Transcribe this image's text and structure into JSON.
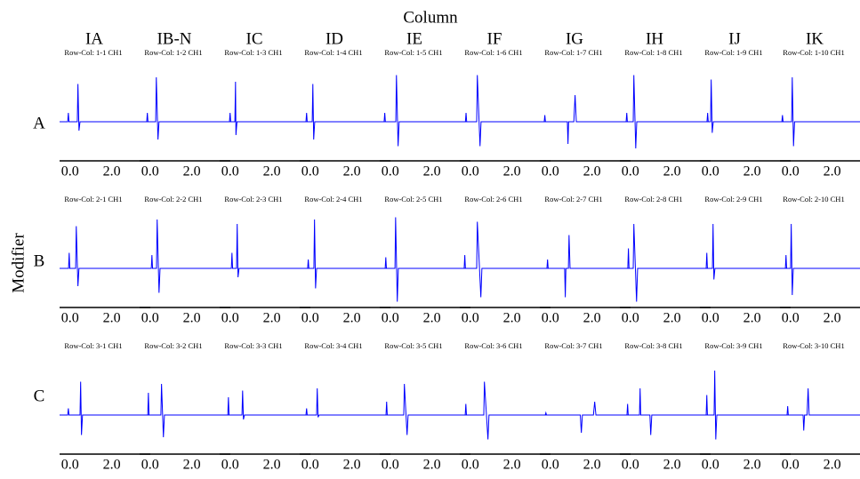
{
  "title": "Column",
  "ylabel": "Modifier",
  "columns": [
    "IA",
    "IB-N",
    "IC",
    "ID",
    "IE",
    "IF",
    "IG",
    "IH",
    "IJ",
    "IK"
  ],
  "rows": [
    "A",
    "B",
    "C"
  ],
  "chart_data": [
    {
      "type": "line",
      "title": "Row-Col: 1-1 CH1",
      "color": "#0000ff",
      "xlim": [
        -0.5,
        3.85
      ],
      "ylim": [
        -0.8,
        1.3
      ],
      "xticks": [
        {
          "value": 0,
          "label": "0.0"
        },
        {
          "value": 2,
          "label": "2.0"
        }
      ],
      "x": [
        -0.5,
        -0.11,
        -0.08,
        -0.05,
        0.35,
        0.38,
        0.43,
        0.48,
        3.85
      ],
      "values": [
        0,
        0,
        0.2,
        0,
        0,
        0.85,
        -0.2,
        0,
        0
      ]
    },
    {
      "type": "line",
      "title": "Row-Col: 1-2 CH1",
      "color": "#0000ff",
      "xlim": [
        -0.5,
        3.85
      ],
      "ylim": [
        -0.8,
        1.3
      ],
      "xticks": [
        {
          "value": 0,
          "label": "0.0"
        },
        {
          "value": 2,
          "label": "2.0"
        }
      ],
      "x": [
        -0.5,
        -0.16,
        -0.13,
        -0.1,
        0.27,
        0.3,
        0.38,
        0.43,
        3.85
      ],
      "values": [
        0,
        0,
        0.2,
        0,
        0,
        1.0,
        -0.4,
        0,
        0
      ]
    },
    {
      "type": "line",
      "title": "Row-Col: 1-3 CH1",
      "color": "#0000ff",
      "xlim": [
        -0.5,
        3.85
      ],
      "ylim": [
        -0.8,
        1.3
      ],
      "xticks": [
        {
          "value": 0,
          "label": "0.0"
        },
        {
          "value": 2,
          "label": "2.0"
        }
      ],
      "x": [
        -0.5,
        -0.03,
        0,
        0.03,
        0.23,
        0.26,
        0.28,
        0.33,
        3.85
      ],
      "values": [
        0,
        0,
        0.2,
        0,
        0,
        0.9,
        -0.3,
        0,
        0
      ]
    },
    {
      "type": "line",
      "title": "Row-Col: 1-4 CH1",
      "color": "#0000ff",
      "xlim": [
        -0.5,
        3.85
      ],
      "ylim": [
        -0.8,
        1.3
      ],
      "xticks": [
        {
          "value": 0,
          "label": "0.0"
        },
        {
          "value": 2,
          "label": "2.0"
        }
      ],
      "x": [
        -0.5,
        -0.2,
        -0.17,
        -0.14,
        0.1,
        0.13,
        0.17,
        0.22,
        3.85
      ],
      "values": [
        0,
        0,
        0.2,
        0,
        0,
        0.85,
        -0.4,
        0,
        0
      ]
    },
    {
      "type": "line",
      "title": "Row-Col: 1-5 CH1",
      "color": "#0000ff",
      "xlim": [
        -0.5,
        3.85
      ],
      "ylim": [
        -0.8,
        1.3
      ],
      "xticks": [
        {
          "value": 0,
          "label": "0.0"
        },
        {
          "value": 2,
          "label": "2.0"
        }
      ],
      "x": [
        -0.5,
        -0.29,
        -0.26,
        -0.23,
        0.27,
        0.3,
        0.38,
        0.43,
        3.85
      ],
      "values": [
        0,
        0,
        0.2,
        0,
        0,
        1.05,
        -0.55,
        0,
        0
      ]
    },
    {
      "type": "line",
      "title": "Row-Col: 1-6 CH1",
      "color": "#0000ff",
      "xlim": [
        -0.5,
        3.85
      ],
      "ylim": [
        -0.8,
        1.3
      ],
      "xticks": [
        {
          "value": 0,
          "label": "0.0"
        },
        {
          "value": 2,
          "label": "2.0"
        }
      ],
      "x": [
        -0.5,
        -0.23,
        -0.2,
        -0.17,
        0.31,
        0.34,
        0.47,
        0.52,
        3.85
      ],
      "values": [
        0,
        0,
        0.2,
        0,
        0,
        1.05,
        -0.55,
        0,
        0
      ]
    },
    {
      "type": "line",
      "title": "Row-Col: 1-7 CH1",
      "color": "#0000ff",
      "xlim": [
        -0.5,
        3.85
      ],
      "ylim": [
        -0.8,
        1.3
      ],
      "xticks": [
        {
          "value": 0,
          "label": "0.0"
        },
        {
          "value": 2,
          "label": "2.0"
        }
      ],
      "x": [
        -0.5,
        -0.29,
        -0.26,
        -0.23,
        0.82,
        0.85,
        0.88,
        1.13,
        1.19,
        1.25,
        3.85
      ],
      "values": [
        0,
        0,
        0.15,
        0,
        0,
        -0.5,
        0,
        0,
        0.6,
        0,
        0
      ]
    },
    {
      "type": "line",
      "title": "Row-Col: 1-8 CH1",
      "color": "#0000ff",
      "xlim": [
        -0.5,
        3.85
      ],
      "ylim": [
        -0.8,
        1.3
      ],
      "xticks": [
        {
          "value": 0,
          "label": "0.0"
        },
        {
          "value": 2,
          "label": "2.0"
        }
      ],
      "x": [
        -0.5,
        -0.2,
        -0.17,
        -0.14,
        0.14,
        0.17,
        0.26,
        0.31,
        3.85
      ],
      "values": [
        0,
        0,
        0.2,
        0,
        0,
        1.05,
        -0.6,
        0,
        0
      ]
    },
    {
      "type": "line",
      "title": "Row-Col: 1-9 CH1",
      "color": "#0000ff",
      "xlim": [
        -0.5,
        3.85
      ],
      "ylim": [
        -0.8,
        1.3
      ],
      "xticks": [
        {
          "value": 0,
          "label": "0.0"
        },
        {
          "value": 2,
          "label": "2.0"
        }
      ],
      "x": [
        -0.5,
        -0.16,
        -0.13,
        -0.1,
        0.01,
        0.04,
        0.09,
        0.14,
        3.85
      ],
      "values": [
        0,
        0,
        0.2,
        0,
        0,
        0.95,
        -0.25,
        0,
        0
      ]
    },
    {
      "type": "line",
      "title": "Row-Col: 1-10 CH1",
      "color": "#0000ff",
      "xlim": [
        -0.5,
        3.85
      ],
      "ylim": [
        -0.8,
        1.3
      ],
      "xticks": [
        {
          "value": 0,
          "label": "0.0"
        },
        {
          "value": 2,
          "label": "2.0"
        }
      ],
      "x": [
        -0.5,
        -0.41,
        -0.38,
        -0.35,
        0.06,
        0.09,
        0.15,
        0.2,
        3.85
      ],
      "values": [
        0,
        0,
        0.15,
        0,
        0,
        1.0,
        -0.55,
        0,
        0
      ]
    },
    {
      "type": "line",
      "title": "Row-Col: 2-1 CH1",
      "color": "#0000ff",
      "xlim": [
        -0.5,
        3.85
      ],
      "ylim": [
        -0.8,
        1.3
      ],
      "xticks": [
        {
          "value": 0,
          "label": "0.0"
        },
        {
          "value": 2,
          "label": "2.0"
        }
      ],
      "x": [
        -0.5,
        -0.07,
        -0.04,
        -0.01,
        0.27,
        0.3,
        0.38,
        0.43,
        3.85
      ],
      "values": [
        0,
        0,
        0.35,
        0,
        0,
        0.95,
        -0.4,
        0,
        0
      ]
    },
    {
      "type": "line",
      "title": "Row-Col: 2-2 CH1",
      "color": "#0000ff",
      "xlim": [
        -0.5,
        3.85
      ],
      "ylim": [
        -0.8,
        1.3
      ],
      "xticks": [
        {
          "value": 0,
          "label": "0.0"
        },
        {
          "value": 2,
          "label": "2.0"
        }
      ],
      "x": [
        -0.5,
        0.06,
        0.09,
        0.12,
        0.31,
        0.34,
        0.43,
        0.48,
        3.85
      ],
      "values": [
        0,
        0,
        0.3,
        0,
        0,
        1.1,
        -0.55,
        0,
        0
      ]
    },
    {
      "type": "line",
      "title": "Row-Col: 2-3 CH1",
      "color": "#0000ff",
      "xlim": [
        -0.5,
        3.85
      ],
      "ylim": [
        -0.8,
        1.3
      ],
      "xticks": [
        {
          "value": 0,
          "label": "0.0"
        },
        {
          "value": 2,
          "label": "2.0"
        }
      ],
      "x": [
        -0.5,
        0.06,
        0.09,
        0.12,
        0.31,
        0.34,
        0.38,
        0.43,
        3.85
      ],
      "values": [
        0,
        0,
        0.35,
        0,
        0,
        1.0,
        -0.2,
        0,
        0
      ]
    },
    {
      "type": "line",
      "title": "Row-Col: 2-4 CH1",
      "color": "#0000ff",
      "xlim": [
        -0.5,
        3.85
      ],
      "ylim": [
        -0.8,
        1.3
      ],
      "xticks": [
        {
          "value": 0,
          "label": "0.0"
        },
        {
          "value": 2,
          "label": "2.0"
        }
      ],
      "x": [
        -0.5,
        -0.12,
        -0.09,
        -0.06,
        0.18,
        0.21,
        0.26,
        0.31,
        3.85
      ],
      "values": [
        0,
        0,
        0.2,
        0,
        0,
        1.1,
        -0.45,
        0,
        0
      ]
    },
    {
      "type": "line",
      "title": "Row-Col: 2-5 CH1",
      "color": "#0000ff",
      "xlim": [
        -0.5,
        3.85
      ],
      "ylim": [
        -0.8,
        1.3
      ],
      "xticks": [
        {
          "value": 0,
          "label": "0.0"
        },
        {
          "value": 2,
          "label": "2.0"
        }
      ],
      "x": [
        -0.5,
        -0.24,
        -0.21,
        -0.18,
        0.23,
        0.26,
        0.34,
        0.39,
        3.85
      ],
      "values": [
        0,
        0,
        0.25,
        0,
        0,
        1.15,
        -0.75,
        0,
        0
      ]
    },
    {
      "type": "line",
      "title": "Row-Col: 2-6 CH1",
      "color": "#0000ff",
      "xlim": [
        -0.5,
        3.85
      ],
      "ylim": [
        -0.8,
        1.3
      ],
      "xticks": [
        {
          "value": 0,
          "label": "0.0"
        },
        {
          "value": 2,
          "label": "2.0"
        }
      ],
      "x": [
        -0.5,
        -0.29,
        -0.26,
        -0.23,
        0.31,
        0.34,
        0.51,
        0.56,
        3.85
      ],
      "values": [
        0,
        0,
        0.3,
        0,
        0,
        1.05,
        -0.65,
        0,
        0
      ]
    },
    {
      "type": "line",
      "title": "Row-Col: 2-7 CH1",
      "color": "#0000ff",
      "xlim": [
        -0.5,
        3.85
      ],
      "ylim": [
        -0.8,
        1.3
      ],
      "xticks": [
        {
          "value": 0,
          "label": "0.0"
        },
        {
          "value": 2,
          "label": "2.0"
        }
      ],
      "x": [
        -0.5,
        -0.16,
        -0.13,
        -0.1,
        0.69,
        0.72,
        0.75,
        0.87,
        0.9,
        0.95,
        3.85
      ],
      "values": [
        0,
        0,
        0.2,
        0,
        0,
        -0.65,
        0,
        0,
        0.75,
        0,
        0
      ]
    },
    {
      "type": "line",
      "title": "Row-Col: 2-8 CH1",
      "color": "#0000ff",
      "xlim": [
        -0.5,
        3.85
      ],
      "ylim": [
        -0.8,
        1.3
      ],
      "xticks": [
        {
          "value": 0,
          "label": "0.0"
        },
        {
          "value": 2,
          "label": "2.0"
        }
      ],
      "x": [
        -0.5,
        -0.12,
        -0.09,
        -0.06,
        0.14,
        0.17,
        0.3,
        0.35,
        3.85
      ],
      "values": [
        0,
        0,
        0.45,
        0,
        0,
        1.0,
        -0.75,
        0,
        0
      ]
    },
    {
      "type": "line",
      "title": "Row-Col: 2-9 CH1",
      "color": "#0000ff",
      "xlim": [
        -0.5,
        3.85
      ],
      "ylim": [
        -0.8,
        1.3
      ],
      "xticks": [
        {
          "value": 0,
          "label": "0.0"
        },
        {
          "value": 2,
          "label": "2.0"
        }
      ],
      "x": [
        -0.5,
        -0.2,
        -0.17,
        -0.14,
        0.1,
        0.13,
        0.17,
        0.22,
        3.85
      ],
      "values": [
        0,
        0,
        0.35,
        0,
        0,
        1.0,
        -0.25,
        0,
        0
      ]
    },
    {
      "type": "line",
      "title": "Row-Col: 2-10 CH1",
      "color": "#0000ff",
      "xlim": [
        -0.5,
        3.85
      ],
      "ylim": [
        -0.8,
        1.3
      ],
      "xticks": [
        {
          "value": 0,
          "label": "0.0"
        },
        {
          "value": 2,
          "label": "2.0"
        }
      ],
      "x": [
        -0.5,
        -0.24,
        -0.21,
        -0.18,
        0.01,
        0.04,
        0.09,
        0.14,
        3.85
      ],
      "values": [
        0,
        0,
        0.3,
        0,
        0,
        1.0,
        -0.6,
        0,
        0
      ]
    },
    {
      "type": "line",
      "title": "Row-Col: 3-1 CH1",
      "color": "#0000ff",
      "xlim": [
        -0.5,
        3.85
      ],
      "ylim": [
        -0.8,
        1.3
      ],
      "xticks": [
        {
          "value": 0,
          "label": "0.0"
        },
        {
          "value": 2,
          "label": "2.0"
        }
      ],
      "x": [
        -0.5,
        -0.11,
        -0.08,
        -0.05,
        0.48,
        0.51,
        0.55,
        0.6,
        3.85
      ],
      "values": [
        0,
        0,
        0.15,
        0,
        0,
        0.75,
        -0.45,
        0,
        0
      ]
    },
    {
      "type": "line",
      "title": "Row-Col: 3-2 CH1",
      "color": "#0000ff",
      "xlim": [
        -0.5,
        3.85
      ],
      "ylim": [
        -0.8,
        1.3
      ],
      "xticks": [
        {
          "value": 0,
          "label": "0.0"
        },
        {
          "value": 2,
          "label": "2.0"
        }
      ],
      "x": [
        -0.5,
        -0.11,
        -0.08,
        -0.05,
        0.52,
        0.55,
        0.64,
        0.69,
        3.85
      ],
      "values": [
        0,
        0,
        0.5,
        0,
        0,
        0.7,
        -0.5,
        0,
        0
      ]
    },
    {
      "type": "line",
      "title": "Row-Col: 3-3 CH1",
      "color": "#0000ff",
      "xlim": [
        -0.5,
        3.85
      ],
      "ylim": [
        -0.8,
        1.3
      ],
      "xticks": [
        {
          "value": 0,
          "label": "0.0"
        },
        {
          "value": 2,
          "label": "2.0"
        }
      ],
      "x": [
        -0.5,
        -0.11,
        -0.08,
        -0.05,
        0.57,
        0.6,
        0.64,
        0.69,
        3.85
      ],
      "values": [
        0,
        0,
        0.4,
        0,
        0,
        0.55,
        -0.1,
        0,
        0
      ]
    },
    {
      "type": "line",
      "title": "Row-Col: 3-4 CH1",
      "color": "#0000ff",
      "xlim": [
        -0.5,
        3.85
      ],
      "ylim": [
        -0.8,
        1.3
      ],
      "xticks": [
        {
          "value": 0,
          "label": "0.0"
        },
        {
          "value": 2,
          "label": "2.0"
        }
      ],
      "x": [
        -0.5,
        -0.2,
        -0.17,
        -0.14,
        0.31,
        0.34,
        0.38,
        0.43,
        3.85
      ],
      "values": [
        0,
        0,
        0.15,
        0,
        0,
        0.6,
        -0.05,
        0,
        0
      ]
    },
    {
      "type": "line",
      "title": "Row-Col: 3-5 CH1",
      "color": "#0000ff",
      "xlim": [
        -0.5,
        3.85
      ],
      "ylim": [
        -0.8,
        1.3
      ],
      "xticks": [
        {
          "value": 0,
          "label": "0.0"
        },
        {
          "value": 2,
          "label": "2.0"
        }
      ],
      "x": [
        -0.5,
        -0.2,
        -0.17,
        -0.14,
        0.65,
        0.68,
        0.81,
        0.86,
        3.85
      ],
      "values": [
        0,
        0,
        0.3,
        0,
        0,
        0.7,
        -0.45,
        0,
        0
      ]
    },
    {
      "type": "line",
      "title": "Row-Col: 3-6 CH1",
      "color": "#0000ff",
      "xlim": [
        -0.5,
        3.85
      ],
      "ylim": [
        -0.8,
        1.3
      ],
      "xticks": [
        {
          "value": 0,
          "label": "0.0"
        },
        {
          "value": 2,
          "label": "2.0"
        }
      ],
      "x": [
        -0.5,
        -0.24,
        -0.21,
        -0.18,
        0.65,
        0.68,
        0.85,
        0.9,
        3.85
      ],
      "values": [
        0,
        0,
        0.25,
        0,
        0,
        0.75,
        -0.55,
        0,
        0
      ]
    },
    {
      "type": "line",
      "title": "Row-Col: 3-7 CH1",
      "color": "#0000ff",
      "xlim": [
        -0.5,
        3.85
      ],
      "ylim": [
        -0.8,
        1.3
      ],
      "xticks": [
        {
          "value": 0,
          "label": "0.0"
        },
        {
          "value": 2,
          "label": "2.0"
        }
      ],
      "x": [
        -0.5,
        -0.24,
        -0.21,
        -0.18,
        1.44,
        1.49,
        1.54,
        2.07,
        2.13,
        2.19,
        3.85
      ],
      "values": [
        0,
        0,
        0.05,
        0,
        0,
        -0.4,
        0,
        0,
        0.3,
        0,
        0
      ]
    },
    {
      "type": "line",
      "title": "Row-Col: 3-8 CH1",
      "color": "#0000ff",
      "xlim": [
        -0.5,
        3.85
      ],
      "ylim": [
        -0.8,
        1.3
      ],
      "xticks": [
        {
          "value": 0,
          "label": "0.0"
        },
        {
          "value": 2,
          "label": "2.0"
        }
      ],
      "x": [
        -0.5,
        -0.16,
        -0.13,
        -0.1,
        0.44,
        0.47,
        0.5,
        0.94,
        0.98,
        1.03,
        3.85
      ],
      "values": [
        0,
        0,
        0.25,
        0,
        0,
        0.6,
        0,
        0,
        -0.45,
        0,
        0
      ]
    },
    {
      "type": "line",
      "title": "Row-Col: 3-9 CH1",
      "color": "#0000ff",
      "xlim": [
        -0.5,
        3.85
      ],
      "ylim": [
        -0.8,
        1.3
      ],
      "xticks": [
        {
          "value": 0,
          "label": "0.0"
        },
        {
          "value": 2,
          "label": "2.0"
        }
      ],
      "x": [
        -0.5,
        -0.2,
        -0.17,
        -0.14,
        0.18,
        0.21,
        0.26,
        0.31,
        3.85
      ],
      "values": [
        0,
        0,
        0.45,
        0,
        0,
        1.0,
        -0.55,
        0,
        0
      ]
    },
    {
      "type": "line",
      "title": "Row-Col: 3-10 CH1",
      "color": "#0000ff",
      "xlim": [
        -0.5,
        3.85
      ],
      "ylim": [
        -0.8,
        1.3
      ],
      "xticks": [
        {
          "value": 0,
          "label": "0.0"
        },
        {
          "value": 2,
          "label": "2.0"
        }
      ],
      "x": [
        -0.5,
        -0.16,
        -0.13,
        -0.1,
        0.61,
        0.64,
        0.68,
        0.8,
        0.85,
        0.9,
        3.85
      ],
      "values": [
        0,
        0,
        0.2,
        0,
        0,
        -0.35,
        0,
        0,
        0.6,
        0,
        0
      ]
    }
  ]
}
